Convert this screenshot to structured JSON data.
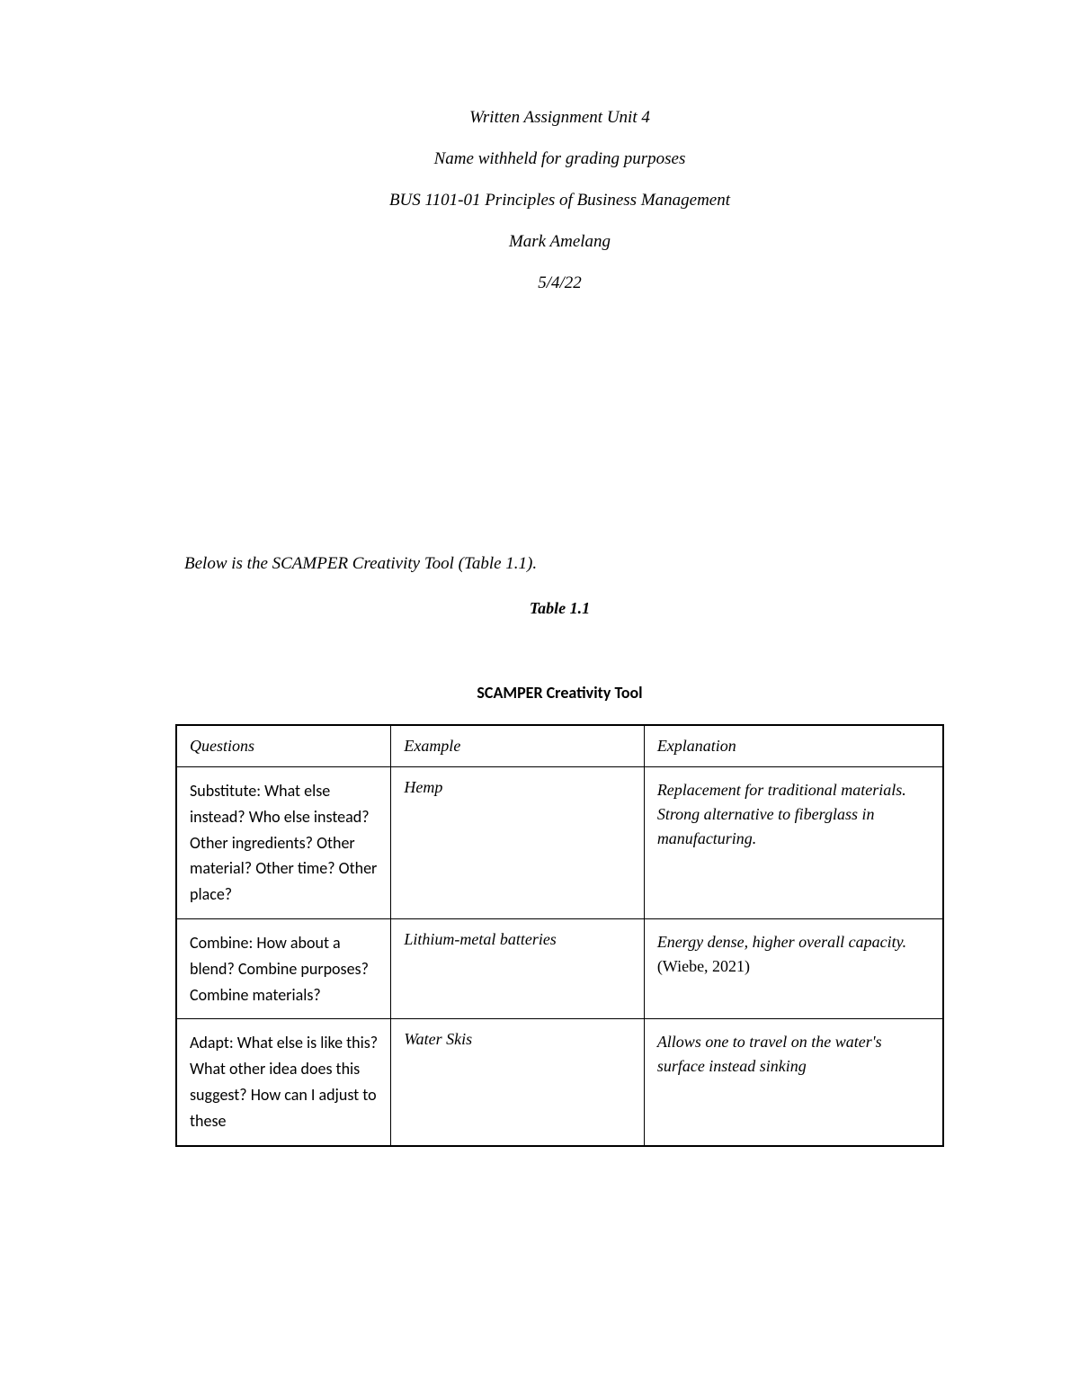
{
  "header": {
    "title": "Written Assignment Unit 4",
    "name_withheld": "Name withheld for grading purposes",
    "course": "BUS 1101-01 Principles of Business Management",
    "instructor": "Mark Amelang",
    "date": "5/4/22"
  },
  "intro": "Below is the SCAMPER Creativity Tool (Table 1.1).",
  "table_label": "Table 1.1",
  "table_title": "SCAMPER Creativity Tool",
  "table": {
    "columns": [
      "Questions",
      "Example",
      "Explanation"
    ],
    "rows": [
      {
        "question": "Substitute: What else instead? Who else instead? Other ingredients? Other material? Other time? Other place?",
        "example": "Hemp",
        "explanation": "Replacement for traditional materials. Strong alternative to fiberglass in manufacturing."
      },
      {
        "question": "Combine: How about a blend? Combine purposes? Combine materials?",
        "example": "Lithium-metal batteries",
        "explanation_italic": "Energy dense, higher overall capacity.",
        "explanation_normal": " (Wiebe, 2021)"
      },
      {
        "question": "Adapt: What else is like this? What other idea does this suggest? How can I adjust to these",
        "example": "Water Skis",
        "explanation": "Allows one to travel on the water's surface instead sinking"
      }
    ]
  },
  "styles": {
    "background_color": "#ffffff",
    "text_color": "#000000",
    "border_color": "#000000",
    "header_fontsize": 19,
    "body_fontsize": 18,
    "font_family_serif": "Georgia",
    "font_family_sans": "Calibri"
  }
}
